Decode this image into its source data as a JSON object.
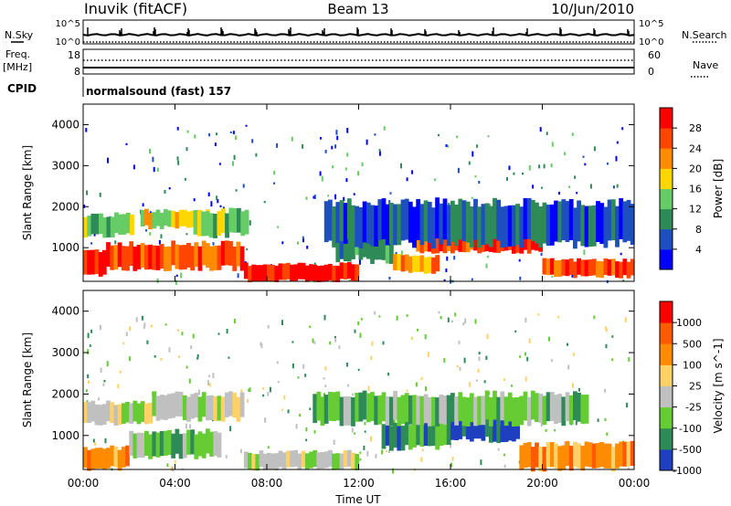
{
  "header": {
    "site": "Inuvik (fitACF)",
    "beam": "Beam 13",
    "date": "10/Jun/2010"
  },
  "params": {
    "nsky_label": "N.Sky",
    "nsearch_label": "N.Search",
    "freq_label_line1": "Freq.",
    "freq_label_line2": "[MHz]",
    "nave_label": "Nave",
    "cpid_label": "CPID",
    "cpid_value": "normalsound (fast) 157",
    "noise_left_ticks": [
      "10^5",
      "10^0"
    ],
    "noise_right_ticks": [
      "10^5",
      "10^0"
    ],
    "freq_ticks": [
      "18",
      "8"
    ],
    "nave_ticks": [
      "60",
      "0"
    ]
  },
  "chart_data": [
    {
      "type": "heatmap",
      "title": "",
      "xlabel": "Time UT",
      "ylabel": "Slant Range [km]",
      "xlim": [
        0,
        24
      ],
      "ylim": [
        180,
        4500
      ],
      "xticks": [
        "00:00",
        "04:00",
        "08:00",
        "12:00",
        "16:00",
        "20:00",
        "00:00"
      ],
      "yticks": [
        1000,
        2000,
        3000,
        4000
      ],
      "colorbar": {
        "label": "Power [dB]",
        "ticks": [
          "28",
          "24",
          "20",
          "16",
          "12",
          "8",
          "4"
        ],
        "colors": [
          "#0000ff",
          "#1e4fbf",
          "#2e8b57",
          "#66cc66",
          "#ffd700",
          "#ff8c00",
          "#ff4500",
          "#ff0000"
        ]
      },
      "bands": [
        {
          "t0": 0.0,
          "t1": 1.0,
          "r0": 300,
          "r1": 900,
          "level": 7
        },
        {
          "t0": 0.0,
          "t1": 2.2,
          "r0": 1300,
          "r1": 1800,
          "level": 3
        },
        {
          "t0": 1.0,
          "t1": 7.0,
          "r0": 500,
          "r1": 1100,
          "level": 6
        },
        {
          "t0": 2.5,
          "t1": 5.5,
          "r0": 1500,
          "r1": 1900,
          "level": 4
        },
        {
          "t0": 4.8,
          "t1": 7.2,
          "r0": 1300,
          "r1": 1900,
          "level": 3
        },
        {
          "t0": 7.0,
          "t1": 12.0,
          "r0": 200,
          "r1": 600,
          "level": 7
        },
        {
          "t0": 11.0,
          "t1": 13.5,
          "r0": 700,
          "r1": 1700,
          "level": 2
        },
        {
          "t0": 13.5,
          "t1": 15.5,
          "r0": 400,
          "r1": 800,
          "level": 5
        },
        {
          "t0": 14.5,
          "t1": 17.0,
          "r0": 900,
          "r1": 1300,
          "level": 6
        },
        {
          "t0": 17.0,
          "t1": 20.0,
          "r0": 900,
          "r1": 1300,
          "level": 7
        },
        {
          "t0": 20.0,
          "t1": 24.0,
          "r0": 300,
          "r1": 700,
          "level": 6
        },
        {
          "t0": 10.5,
          "t1": 24.0,
          "r0": 1100,
          "r1": 2100,
          "level": 1
        }
      ]
    },
    {
      "type": "heatmap",
      "title": "",
      "xlabel": "Time UT",
      "ylabel": "Slant Range [km]",
      "xlim": [
        0,
        24
      ],
      "ylim": [
        180,
        4500
      ],
      "xticks": [
        "00:00",
        "04:00",
        "08:00",
        "12:00",
        "16:00",
        "20:00",
        "00:00"
      ],
      "yticks": [
        1000,
        2000,
        3000,
        4000
      ],
      "colorbar": {
        "label": "Velocity [m s^-1]",
        "ticks": [
          "1000",
          "500",
          "100",
          "25",
          "-25",
          "-100",
          "-500",
          "-1000"
        ],
        "colors": [
          "#1e3fbf",
          "#2e8b57",
          "#66cc33",
          "#c0c0c0",
          "#ffd166",
          "#ff8c00",
          "#ff5a00",
          "#ff0000"
        ]
      },
      "bands": [
        {
          "t0": 0.0,
          "t1": 3.0,
          "r0": 1300,
          "r1": 1800,
          "level": 3
        },
        {
          "t0": 0.0,
          "t1": 2.0,
          "r0": 200,
          "r1": 700,
          "level": 5
        },
        {
          "t0": 2.0,
          "t1": 6.0,
          "r0": 500,
          "r1": 1100,
          "level": 2
        },
        {
          "t0": 3.0,
          "t1": 7.0,
          "r0": 1400,
          "r1": 2000,
          "level": 3
        },
        {
          "t0": 7.0,
          "t1": 12.0,
          "r0": 200,
          "r1": 600,
          "level": 3
        },
        {
          "t0": 13.0,
          "t1": 16.0,
          "r0": 700,
          "r1": 1300,
          "level": 1
        },
        {
          "t0": 16.0,
          "t1": 19.0,
          "r0": 900,
          "r1": 1600,
          "level": 0
        },
        {
          "t0": 19.0,
          "t1": 24.0,
          "r0": 200,
          "r1": 800,
          "level": 5
        },
        {
          "t0": 10.0,
          "t1": 22.0,
          "r0": 1300,
          "r1": 2000,
          "level": 2
        }
      ]
    }
  ]
}
